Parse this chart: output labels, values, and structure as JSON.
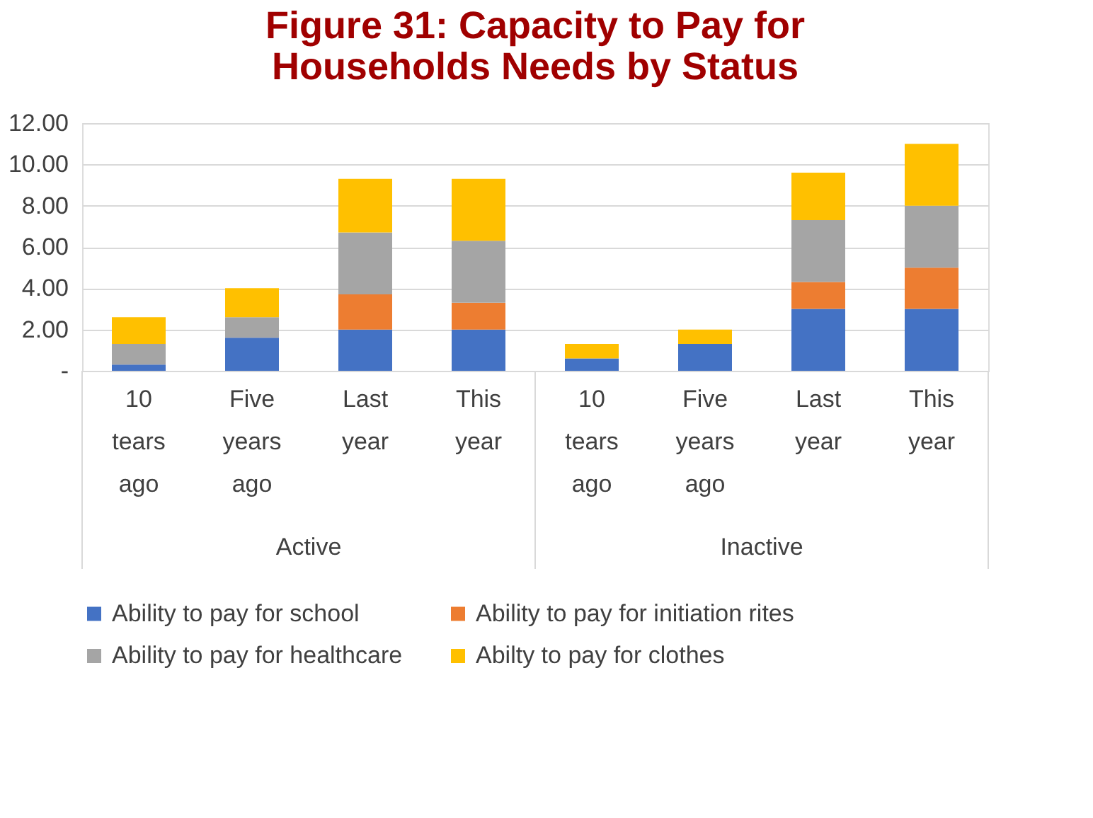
{
  "chart_data": {
    "type": "bar",
    "stacked": true,
    "title": [
      "Figure 31:  Capacity to Pay for",
      "Households Needs by Status"
    ],
    "categories": [
      "10 tears ago",
      "Five years ago",
      "Last year",
      "This year",
      "10 tears ago",
      "Five years ago",
      "Last year",
      "This year"
    ],
    "annotations": [
      "Active",
      "Inactive"
    ],
    "series": [
      {
        "name": "Ability to pay for school",
        "color": "#4472c4",
        "values": [
          0.3,
          1.6,
          2.0,
          2.0,
          0.6,
          1.3,
          3.0,
          3.0
        ]
      },
      {
        "name": "Ability to pay for initiation rites",
        "color": "#ed7d31",
        "values": [
          0,
          0,
          1.7,
          1.3,
          0,
          0,
          1.3,
          2.0
        ]
      },
      {
        "name": "Ability to pay for healthcare",
        "color": "#a5a5a5",
        "values": [
          1.0,
          1.0,
          3.0,
          3.0,
          0,
          0,
          3.0,
          3.0
        ]
      },
      {
        "name": "Abilty to pay for clothes",
        "color": "#ffc000",
        "values": [
          1.3,
          1.4,
          2.6,
          3.0,
          0.7,
          0.7,
          2.3,
          3.0
        ]
      }
    ],
    "ylim": [
      0,
      12
    ],
    "yticks": [
      {
        "value": 0,
        "label": "-"
      },
      {
        "value": 2,
        "label": "2.00"
      },
      {
        "value": 4,
        "label": "4.00"
      },
      {
        "value": 6,
        "label": "6.00"
      },
      {
        "value": 8,
        "label": "8.00"
      },
      {
        "value": 10,
        "label": "10.00"
      },
      {
        "value": 12,
        "label": "12.00"
      }
    ],
    "grid": "y",
    "legend": "bottom"
  }
}
